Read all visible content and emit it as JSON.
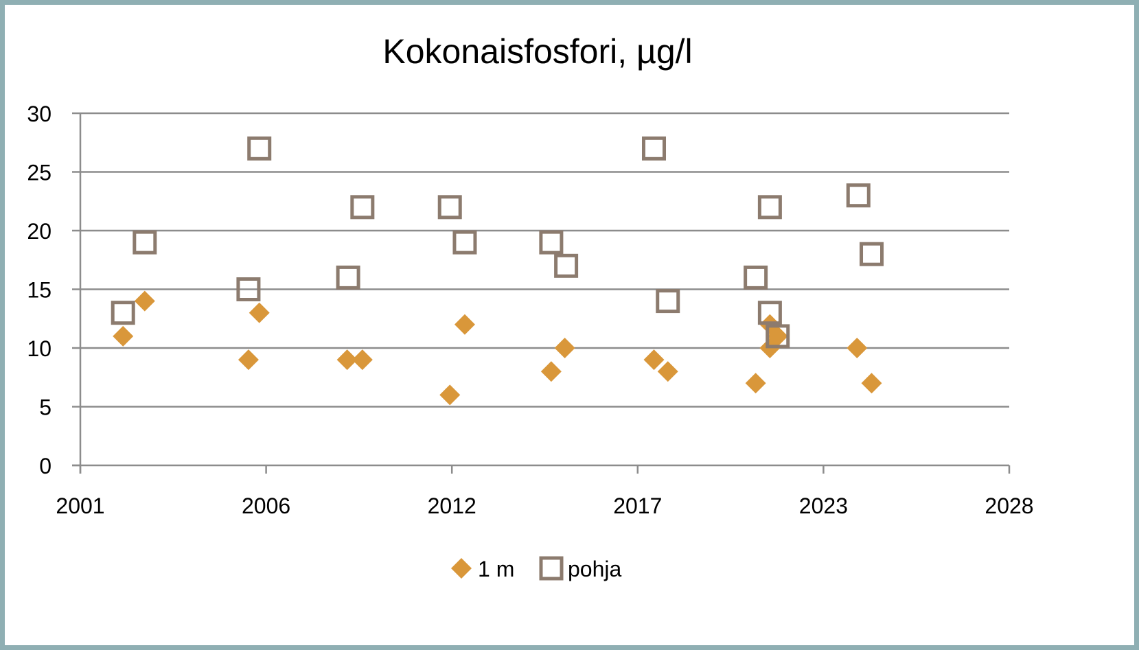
{
  "chart_data": {
    "type": "scatter",
    "title": "Kokonaisfosfori, µg/l",
    "xlabel": "",
    "ylabel": "",
    "xlim": [
      2001.0,
      2028.4
    ],
    "ylim": [
      0,
      30
    ],
    "x_ticks": [
      2001.0,
      2006.48,
      2011.96,
      2017.44,
      2022.92,
      2028.4
    ],
    "x_tick_labels": [
      "2001",
      "2006",
      "2012",
      "2017",
      "2023",
      "2028"
    ],
    "y_ticks": [
      0,
      5,
      10,
      15,
      20,
      25,
      30
    ],
    "y_tick_labels": [
      "0",
      "5",
      "10",
      "15",
      "20",
      "25",
      "30"
    ],
    "grid": "horizontal",
    "legend_position": "bottom",
    "series": [
      {
        "name": "1 m",
        "marker": "diamond",
        "color": "#D9973A",
        "points": [
          [
            2002.26,
            11
          ],
          [
            2002.9,
            14
          ],
          [
            2005.96,
            9
          ],
          [
            2006.28,
            13
          ],
          [
            2008.87,
            9
          ],
          [
            2009.32,
            9
          ],
          [
            2011.9,
            6
          ],
          [
            2012.34,
            12
          ],
          [
            2014.89,
            8
          ],
          [
            2015.29,
            10
          ],
          [
            2017.92,
            9
          ],
          [
            2018.33,
            8
          ],
          [
            2020.92,
            7
          ],
          [
            2021.34,
            12
          ],
          [
            2021.34,
            10
          ],
          [
            2021.57,
            11
          ],
          [
            2023.91,
            10
          ],
          [
            2024.34,
            7
          ]
        ]
      },
      {
        "name": "pohja",
        "marker": "square-open",
        "color": "#8C7B6E",
        "points": [
          [
            2002.26,
            13
          ],
          [
            2002.9,
            19
          ],
          [
            2005.96,
            15
          ],
          [
            2006.28,
            27
          ],
          [
            2008.9,
            16
          ],
          [
            2009.32,
            22
          ],
          [
            2011.9,
            22
          ],
          [
            2012.34,
            19
          ],
          [
            2014.89,
            19
          ],
          [
            2015.33,
            17
          ],
          [
            2017.92,
            27
          ],
          [
            2018.33,
            14
          ],
          [
            2020.92,
            16
          ],
          [
            2021.34,
            22
          ],
          [
            2021.34,
            13
          ],
          [
            2021.57,
            11
          ],
          [
            2023.95,
            23
          ],
          [
            2024.34,
            18
          ]
        ]
      }
    ]
  }
}
